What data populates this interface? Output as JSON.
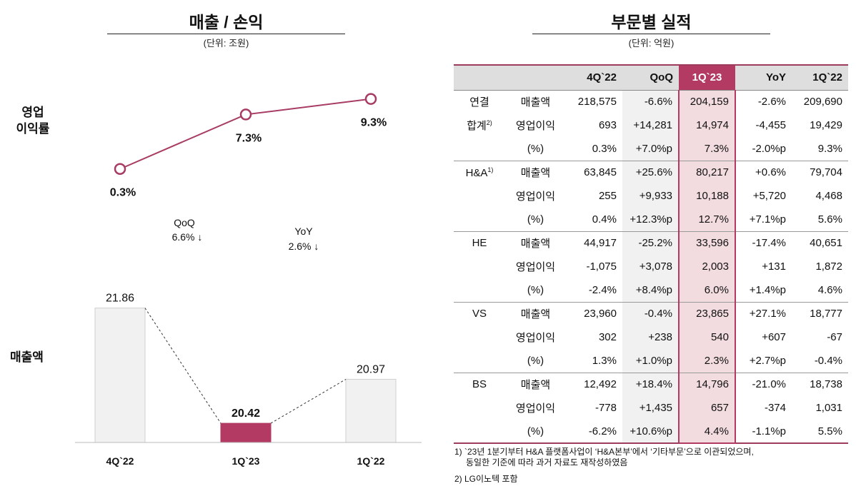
{
  "left_panel": {
    "title": "매출 / 손익",
    "unit": "(단위: 조원)",
    "margin_label_line1": "영업",
    "margin_label_line2": "이익률",
    "sales_label": "매출액"
  },
  "right_panel": {
    "title": "부문별 실적",
    "unit": "(단위: 억원)"
  },
  "chart_data": {
    "type": "bar",
    "categories": [
      "4Q`22",
      "1Q`23",
      "1Q`22"
    ],
    "series": [
      {
        "name": "매출액",
        "values": [
          21.86,
          20.42,
          20.97
        ],
        "labels": [
          "21.86",
          "20.42",
          "20.97"
        ]
      },
      {
        "name": "영업이익률",
        "type": "line",
        "values": [
          0.3,
          7.3,
          9.3
        ],
        "labels": [
          "0.3%",
          "7.3%",
          "9.3%"
        ]
      }
    ],
    "highlight_index": 1,
    "annotations": [
      {
        "label": "QoQ",
        "value": "6.6% ↓"
      },
      {
        "label": "YoY",
        "value": "2.6% ↓"
      }
    ],
    "colors": {
      "bar": "#f1f1f1",
      "bar_highlight": "#b23a63",
      "line": "#a83b62"
    }
  },
  "table": {
    "columns": [
      "",
      "",
      "4Q`22",
      "QoQ",
      "1Q`23",
      "YoY",
      "1Q`22"
    ],
    "highlight_column": "1Q`23",
    "rows": [
      {
        "segment": "연결",
        "metric": "매출액",
        "values": [
          "218,575",
          "-6.6%",
          "204,159",
          "-2.6%",
          "209,690"
        ]
      },
      {
        "segment": "합계",
        "segment_note": "2)",
        "metric": "영업이익",
        "values": [
          "693",
          "+14,281",
          "14,974",
          "-4,455",
          "19,429"
        ]
      },
      {
        "segment": "",
        "metric": "(%)",
        "values": [
          "0.3%",
          "+7.0%p",
          "7.3%",
          "-2.0%p",
          "9.3%"
        ]
      },
      {
        "segment": "H&A",
        "segment_note": "1)",
        "metric": "매출액",
        "values": [
          "63,845",
          "+25.6%",
          "80,217",
          "+0.6%",
          "79,704"
        ]
      },
      {
        "segment": "",
        "metric": "영업이익",
        "values": [
          "255",
          "+9,933",
          "10,188",
          "+5,720",
          "4,468"
        ]
      },
      {
        "segment": "",
        "metric": "(%)",
        "values": [
          "0.4%",
          "+12.3%p",
          "12.7%",
          "+7.1%p",
          "5.6%"
        ]
      },
      {
        "segment": "HE",
        "metric": "매출액",
        "values": [
          "44,917",
          "-25.2%",
          "33,596",
          "-17.4%",
          "40,651"
        ]
      },
      {
        "segment": "",
        "metric": "영업이익",
        "values": [
          "-1,075",
          "+3,078",
          "2,003",
          "+131",
          "1,872"
        ]
      },
      {
        "segment": "",
        "metric": "(%)",
        "values": [
          "-2.4%",
          "+8.4%p",
          "6.0%",
          "+1.4%p",
          "4.6%"
        ]
      },
      {
        "segment": "VS",
        "metric": "매출액",
        "values": [
          "23,960",
          "-0.4%",
          "23,865",
          "+27.1%",
          "18,777"
        ]
      },
      {
        "segment": "",
        "metric": "영업이익",
        "values": [
          "302",
          "+238",
          "540",
          "+607",
          "-67"
        ]
      },
      {
        "segment": "",
        "metric": "(%)",
        "values": [
          "1.3%",
          "+1.0%p",
          "2.3%",
          "+2.7%p",
          "-0.4%"
        ]
      },
      {
        "segment": "BS",
        "metric": "매출액",
        "values": [
          "12,492",
          "+18.4%",
          "14,796",
          "-21.0%",
          "18,738"
        ]
      },
      {
        "segment": "",
        "metric": "영업이익",
        "values": [
          "-778",
          "+1,435",
          "657",
          "-374",
          "1,031"
        ]
      },
      {
        "segment": "",
        "metric": "(%)",
        "values": [
          "-6.2%",
          "+10.6%p",
          "4.4%",
          "-1.1%p",
          "5.5%"
        ]
      }
    ]
  },
  "footnotes": {
    "note1_line1": "1) `23년 1분기부터 H&A 플랫폼사업이 ‘H&A본부’에서 ‘기타부문’으로 이관되었으며,",
    "note1_line2": "동일한 기준에 따라 과거 자료도 재작성하였음",
    "note2": "2) LG이노텍 포함"
  }
}
